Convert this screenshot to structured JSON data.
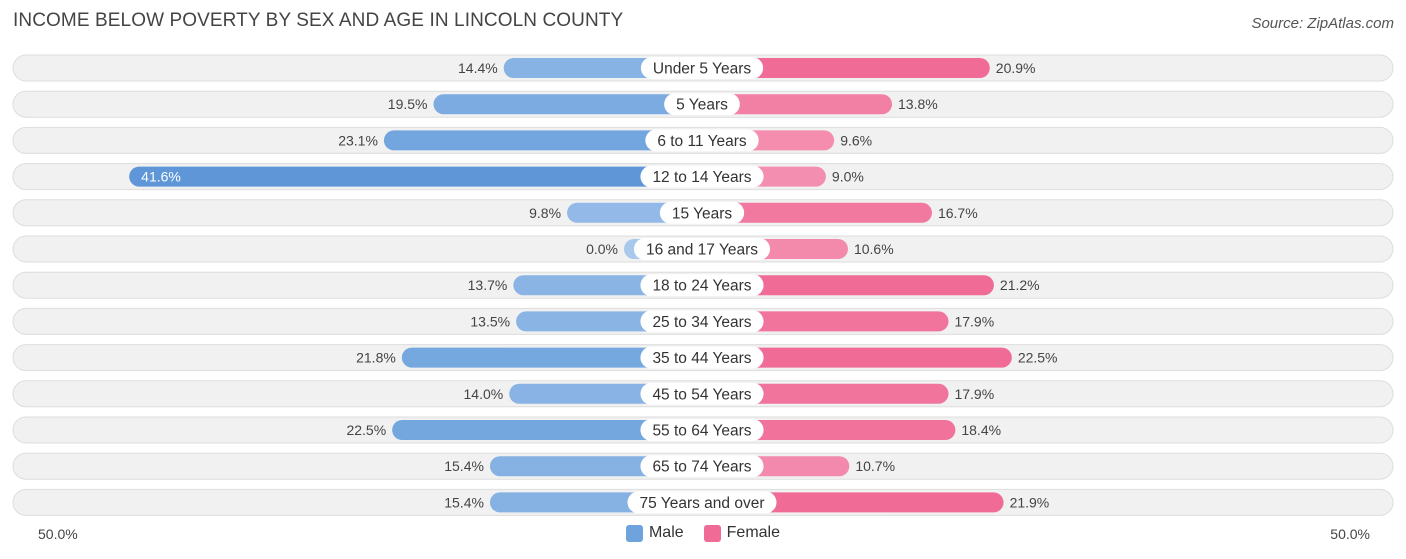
{
  "header": {
    "title": "INCOME BELOW POVERTY BY SEX AND AGE IN LINCOLN COUNTY",
    "source": "Source: ZipAtlas.com"
  },
  "colors": {
    "male": "#6fa3de",
    "male_light": "#a8c8ec",
    "male_strong": "#5e96d8",
    "female": "#f06b96",
    "female_light": "#f7a9c3",
    "row_bg": "#f1f1f1",
    "row_border": "#dddddd"
  },
  "chart_data": {
    "type": "bar",
    "orientation": "horizontal-diverging",
    "title": "INCOME BELOW POVERTY BY SEX AND AGE IN LINCOLN COUNTY",
    "categories": [
      "Under 5 Years",
      "5 Years",
      "6 to 11 Years",
      "12 to 14 Years",
      "15 Years",
      "16 and 17 Years",
      "18 to 24 Years",
      "25 to 34 Years",
      "35 to 44 Years",
      "45 to 54 Years",
      "55 to 64 Years",
      "65 to 74 Years",
      "75 Years and over"
    ],
    "series": [
      {
        "name": "Male",
        "values": [
          14.4,
          19.5,
          23.1,
          41.6,
          9.8,
          0.0,
          13.7,
          13.5,
          21.8,
          14.0,
          22.5,
          15.4,
          15.4
        ],
        "labels": [
          "14.4%",
          "19.5%",
          "23.1%",
          "41.6%",
          "9.8%",
          "0.0%",
          "13.7%",
          "13.5%",
          "21.8%",
          "14.0%",
          "22.5%",
          "15.4%",
          "15.4%"
        ]
      },
      {
        "name": "Female",
        "values": [
          20.9,
          13.8,
          9.6,
          9.0,
          16.7,
          10.6,
          21.2,
          17.9,
          22.5,
          17.9,
          18.4,
          10.7,
          21.9
        ],
        "labels": [
          "20.9%",
          "13.8%",
          "9.6%",
          "9.0%",
          "16.7%",
          "10.6%",
          "21.2%",
          "17.9%",
          "22.5%",
          "17.9%",
          "18.4%",
          "10.7%",
          "21.9%"
        ]
      }
    ],
    "xlim": [
      -50,
      50
    ],
    "axis_left_label": "50.0%",
    "axis_right_label": "50.0%",
    "legend": [
      "Male",
      "Female"
    ],
    "legend_position": "bottom-center"
  }
}
